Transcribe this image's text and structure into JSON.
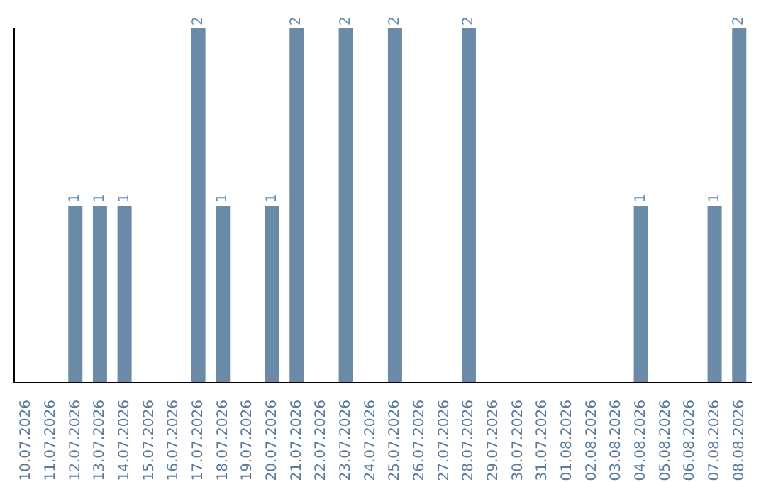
{
  "chart_data": {
    "type": "bar",
    "categories": [
      "10.07.2026",
      "11.07.2026",
      "12.07.2026",
      "13.07.2026",
      "14.07.2026",
      "15.07.2026",
      "16.07.2026",
      "17.07.2026",
      "18.07.2026",
      "19.07.2026",
      "20.07.2026",
      "21.07.2026",
      "22.07.2026",
      "23.07.2026",
      "24.07.2026",
      "25.07.2026",
      "26.07.2026",
      "27.07.2026",
      "28.07.2026",
      "29.07.2026",
      "30.07.2026",
      "31.07.2026",
      "01.08.2026",
      "02.08.2026",
      "03.08.2026",
      "04.08.2026",
      "05.08.2026",
      "06.08.2026",
      "07.08.2026",
      "08.08.2026"
    ],
    "values": [
      0,
      0,
      1,
      1,
      1,
      0,
      0,
      2,
      1,
      0,
      1,
      2,
      0,
      2,
      0,
      2,
      0,
      0,
      2,
      0,
      0,
      0,
      0,
      0,
      0,
      1,
      0,
      0,
      1,
      2
    ],
    "value_labels": [
      null,
      null,
      "1",
      "1",
      "1",
      null,
      null,
      "2",
      "1",
      null,
      "1",
      "2",
      null,
      "2",
      null,
      "2",
      null,
      null,
      "2",
      null,
      null,
      null,
      null,
      null,
      null,
      "1",
      null,
      null,
      "1",
      "2"
    ],
    "color": "#6a8aa8",
    "grid": false,
    "legend": false
  }
}
